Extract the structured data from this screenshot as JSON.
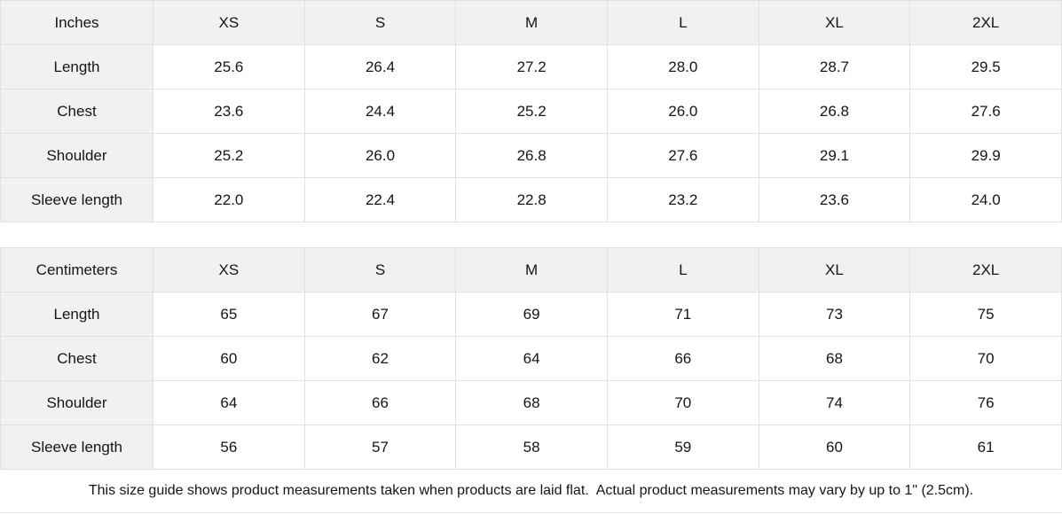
{
  "colors": {
    "header_bg": "#f1f1f1",
    "cell_bg": "#ffffff",
    "border": "#e0e0e0",
    "text": "#151515"
  },
  "tables": [
    {
      "unit_label": "Inches",
      "sizes": [
        "XS",
        "S",
        "M",
        "L",
        "XL",
        "2XL"
      ],
      "rows": [
        {
          "label": "Length",
          "values": [
            "25.6",
            "26.4",
            "27.2",
            "28.0",
            "28.7",
            "29.5"
          ]
        },
        {
          "label": "Chest",
          "values": [
            "23.6",
            "24.4",
            "25.2",
            "26.0",
            "26.8",
            "27.6"
          ]
        },
        {
          "label": "Shoulder",
          "values": [
            "25.2",
            "26.0",
            "26.8",
            "27.6",
            "29.1",
            "29.9"
          ]
        },
        {
          "label": "Sleeve length",
          "values": [
            "22.0",
            "22.4",
            "22.8",
            "23.2",
            "23.6",
            "24.0"
          ]
        }
      ]
    },
    {
      "unit_label": "Centimeters",
      "sizes": [
        "XS",
        "S",
        "M",
        "L",
        "XL",
        "2XL"
      ],
      "rows": [
        {
          "label": "Length",
          "values": [
            "65",
            "67",
            "69",
            "71",
            "73",
            "75"
          ]
        },
        {
          "label": "Chest",
          "values": [
            "60",
            "62",
            "64",
            "66",
            "68",
            "70"
          ]
        },
        {
          "label": "Shoulder",
          "values": [
            "64",
            "66",
            "68",
            "70",
            "74",
            "76"
          ]
        },
        {
          "label": "Sleeve length",
          "values": [
            "56",
            "57",
            "58",
            "59",
            "60",
            "61"
          ]
        }
      ]
    }
  ],
  "footer": {
    "note": "This size guide shows product measurements taken when products are laid flat.  Actual product measurements may vary by up to 1\" (2.5cm)."
  }
}
